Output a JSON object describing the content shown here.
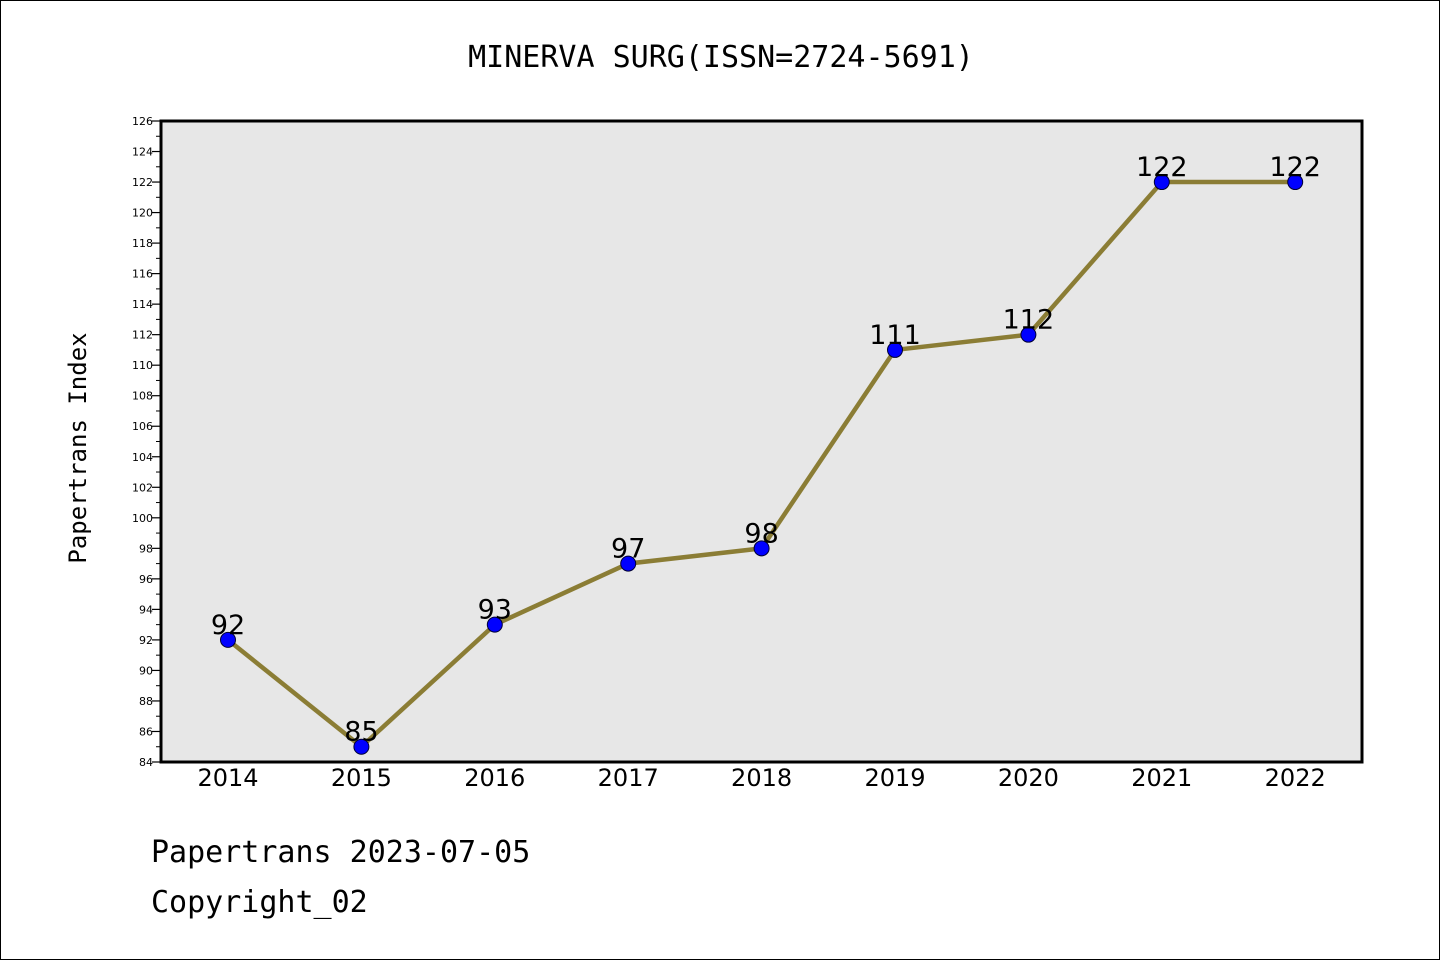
{
  "chart_data": {
    "type": "line",
    "title": "MINERVA SURG(ISSN=2724-5691)",
    "xlabel": "",
    "ylabel": "Papertrans Index",
    "categories": [
      "2014",
      "2015",
      "2016",
      "2017",
      "2018",
      "2019",
      "2020",
      "2021",
      "2022"
    ],
    "series": [
      {
        "values": [
          92,
          85,
          93,
          97,
          98,
          111,
          112,
          122,
          122
        ]
      }
    ],
    "data_labels": [
      "92",
      "85",
      "93",
      "97",
      "98",
      "111",
      "112",
      "122",
      "122"
    ],
    "ylim": [
      84,
      126
    ],
    "y_ticks": [
      "84",
      "86",
      "88",
      "90",
      "92",
      "94",
      "96",
      "98",
      "100",
      "102",
      "104",
      "106",
      "108",
      "110",
      "112",
      "114",
      "116",
      "118",
      "120",
      "122",
      "124",
      "126"
    ],
    "grid": false,
    "legend": "none",
    "colors": {
      "plot_background": "#e7e7e7",
      "line": "#8b7d35",
      "marker_fill": "#0000ff",
      "marker_edge": "#000033",
      "frame": "#000000"
    }
  },
  "footer": {
    "date_line": "Papertrans 2023-07-05",
    "copyright": "Copyright_02"
  }
}
